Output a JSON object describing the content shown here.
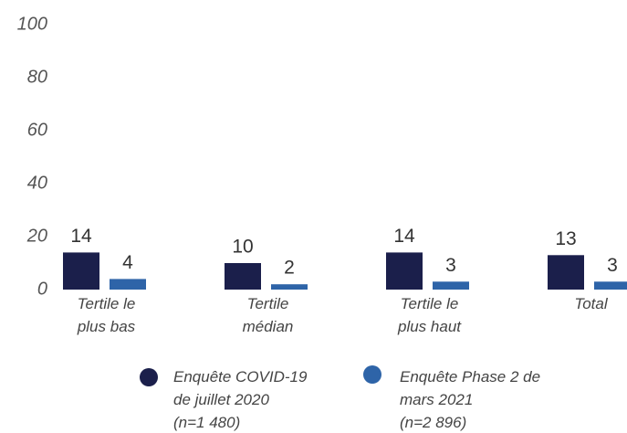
{
  "chart_data": {
    "type": "bar",
    "categories": [
      "Tertile le\nplus bas",
      "Tertile\nmédian",
      "Tertile le\nplus haut",
      "Total"
    ],
    "series": [
      {
        "name": "Enquête COVID-19\nde juillet 2020\n(n=1 480)",
        "color": "#1b1f4b",
        "values": [
          14,
          10,
          14,
          13
        ]
      },
      {
        "name": "Enquête Phase 2 de\nmars 2021\n(n=2 896)",
        "color": "#2e64a8",
        "values": [
          4,
          2,
          3,
          3
        ]
      }
    ],
    "ylim": [
      0,
      100
    ],
    "yticks": [
      0,
      20,
      40,
      60,
      80,
      100
    ],
    "grid": false
  }
}
